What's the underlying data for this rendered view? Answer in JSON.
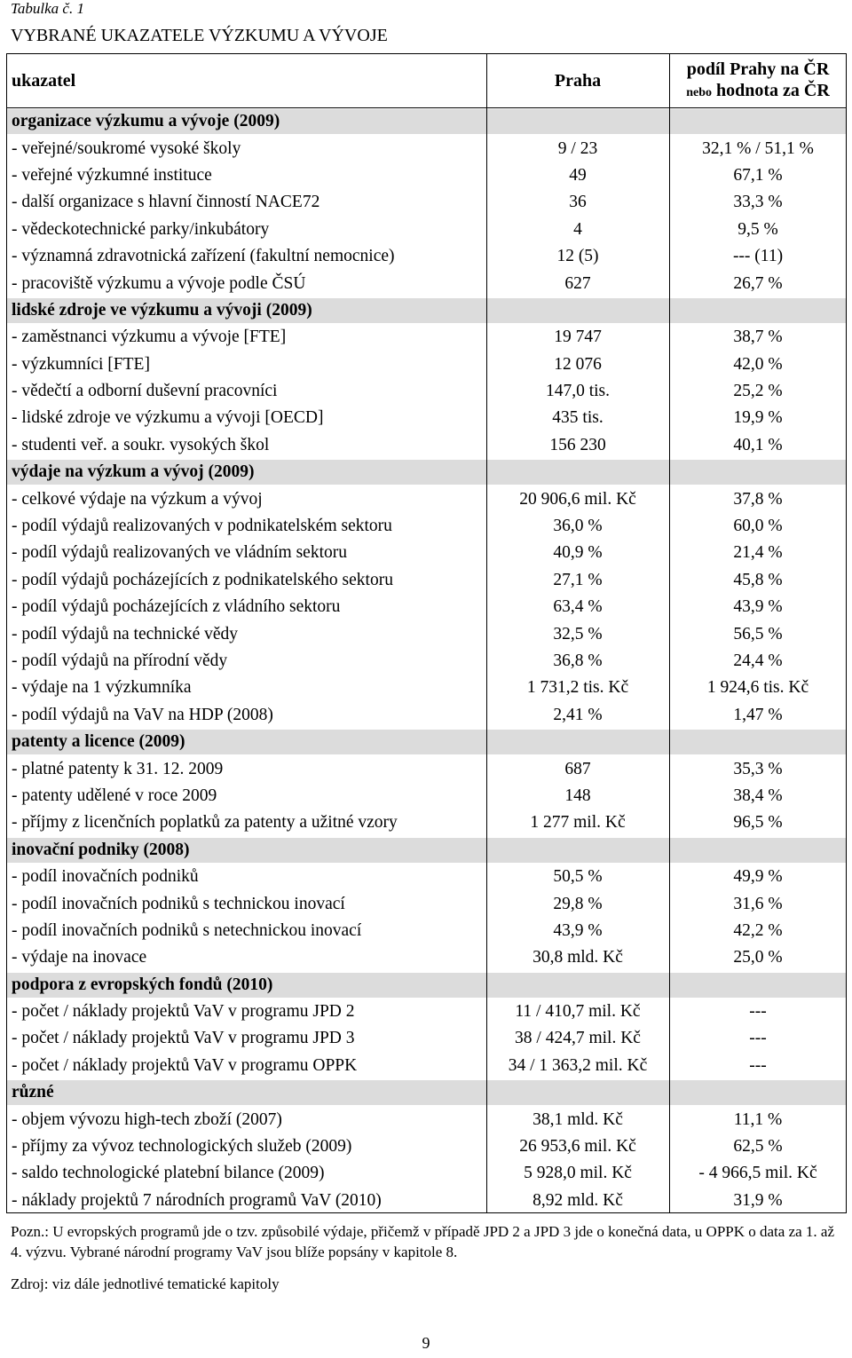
{
  "caption": "Tabulka č. 1",
  "title": "VYBRANÉ UKAZATELE VÝZKUMU A VÝVOJE",
  "table": {
    "headers": {
      "indicator": "ukazatel",
      "praha": "Praha",
      "share_line1": "podíl Prahy na ČR",
      "share_small": "nebo",
      "share_line2": "hodnota za ČR"
    },
    "rows": [
      {
        "label": "organizace výzkumu a vývoje (2009)",
        "praha": "",
        "share": "",
        "section": true
      },
      {
        "label": "- veřejné/soukromé vysoké školy",
        "praha": "9 / 23",
        "share": "32,1 % / 51,1 %"
      },
      {
        "label": "- veřejné výzkumné instituce",
        "praha": "49",
        "share": "67,1 %"
      },
      {
        "label": "- další organizace s hlavní činností NACE72",
        "praha": "36",
        "share": "33,3 %"
      },
      {
        "label": "- vědeckotechnické parky/inkubátory",
        "praha": "4",
        "share": "9,5 %"
      },
      {
        "label": "- významná zdravotnická zařízení (fakultní nemocnice)",
        "praha": "12 (5)",
        "share": "--- (11)"
      },
      {
        "label": "- pracoviště výzkumu a vývoje podle ČSÚ",
        "praha": "627",
        "share": "26,7 %"
      },
      {
        "label": "lidské zdroje ve výzkumu a vývoji (2009)",
        "praha": "",
        "share": "",
        "section": true
      },
      {
        "label": "- zaměstnanci výzkumu a vývoje [FTE]",
        "praha": "19 747",
        "share": "38,7 %"
      },
      {
        "label": "- výzkumníci [FTE]",
        "praha": "12 076",
        "share": "42,0 %"
      },
      {
        "label": "- vědečtí a odborní duševní pracovníci",
        "praha": "147,0 tis.",
        "share": "25,2 %"
      },
      {
        "label": "- lidské zdroje ve výzkumu a vývoji [OECD]",
        "praha": "435 tis.",
        "share": "19,9 %"
      },
      {
        "label": "- studenti veř. a soukr. vysokých škol",
        "praha": "156 230",
        "share": "40,1 %"
      },
      {
        "label": "výdaje na výzkum a vývoj (2009)",
        "praha": "",
        "share": "",
        "section": true
      },
      {
        "label": "- celkové výdaje na výzkum a vývoj",
        "praha": "20 906,6 mil. Kč",
        "share": "37,8 %"
      },
      {
        "label": "- podíl výdajů realizovaných v podnikatelském sektoru",
        "praha": "36,0 %",
        "share": "60,0 %"
      },
      {
        "label": "- podíl výdajů realizovaných ve vládním sektoru",
        "praha": "40,9 %",
        "share": "21,4 %"
      },
      {
        "label": "- podíl výdajů pocházejících z podnikatelského sektoru",
        "praha": "27,1 %",
        "share": "45,8 %"
      },
      {
        "label": "- podíl výdajů pocházejících z vládního sektoru",
        "praha": "63,4 %",
        "share": "43,9 %"
      },
      {
        "label": "- podíl výdajů na technické vědy",
        "praha": "32,5 %",
        "share": "56,5 %"
      },
      {
        "label": "- podíl výdajů na přírodní vědy",
        "praha": "36,8 %",
        "share": "24,4 %"
      },
      {
        "label": "- výdaje na 1 výzkumníka",
        "praha": "1 731,2 tis. Kč",
        "share": "1 924,6 tis. Kč"
      },
      {
        "label": "- podíl výdajů na VaV na HDP (2008)",
        "praha": "2,41 %",
        "share": "1,47 %"
      },
      {
        "label": "patenty a licence (2009)",
        "praha": "",
        "share": "",
        "section": true
      },
      {
        "label": "- platné patenty k 31. 12. 2009",
        "praha": "687",
        "share": "35,3 %"
      },
      {
        "label": "- patenty udělené v roce 2009",
        "praha": "148",
        "share": "38,4 %"
      },
      {
        "label": "- příjmy z licenčních poplatků za patenty a užitné vzory",
        "praha": "1 277 mil. Kč",
        "share": "96,5 %"
      },
      {
        "label": "inovační podniky (2008)",
        "praha": "",
        "share": "",
        "section": true
      },
      {
        "label": "- podíl inovačních podniků",
        "praha": "50,5 %",
        "share": "49,9 %"
      },
      {
        "label": "- podíl inovačních podniků s technickou inovací",
        "praha": "29,8 %",
        "share": "31,6 %"
      },
      {
        "label": "- podíl inovačních podniků s netechnickou inovací",
        "praha": "43,9 %",
        "share": "42,2 %"
      },
      {
        "label": "- výdaje na inovace",
        "praha": "30,8 mld. Kč",
        "share": "25,0 %"
      },
      {
        "label": "podpora z evropských fondů (2010)",
        "praha": "",
        "share": "",
        "section": true
      },
      {
        "label": "- počet / náklady projektů VaV v programu JPD 2",
        "praha": "11 / 410,7 mil. Kč",
        "share": "---"
      },
      {
        "label": "- počet / náklady projektů VaV v programu JPD 3",
        "praha": "38 / 424,7 mil. Kč",
        "share": "---"
      },
      {
        "label": "- počet / náklady projektů VaV v programu OPPK",
        "praha": "34 / 1 363,2 mil. Kč",
        "share": "---"
      },
      {
        "label": "různé",
        "praha": "",
        "share": "",
        "section": true
      },
      {
        "label": "- objem vývozu high-tech zboží (2007)",
        "praha": "38,1 mld. Kč",
        "share": "11,1 %"
      },
      {
        "label": "- příjmy za vývoz technologických služeb (2009)",
        "praha": "26 953,6 mil. Kč",
        "share": "62,5 %"
      },
      {
        "label": "- saldo technologické platební bilance (2009)",
        "praha": "5 928,0 mil. Kč",
        "share": "- 4 966,5 mil. Kč"
      },
      {
        "label": "- náklady projektů 7 národních programů VaV (2010)",
        "praha": "8,92 mld. Kč",
        "share": "31,9 %"
      }
    ]
  },
  "note": "Pozn.: U evropských programů jde o tzv. způsobilé výdaje, přičemž v případě JPD 2 a JPD 3 jde o konečná data, u OPPK o data za 1. až 4. výzvu. Vybrané národní programy VaV jsou blíže popsány v kapitole 8.",
  "source": "Zdroj: viz dále jednotlivé tematické kapitoly",
  "page_number": "9"
}
